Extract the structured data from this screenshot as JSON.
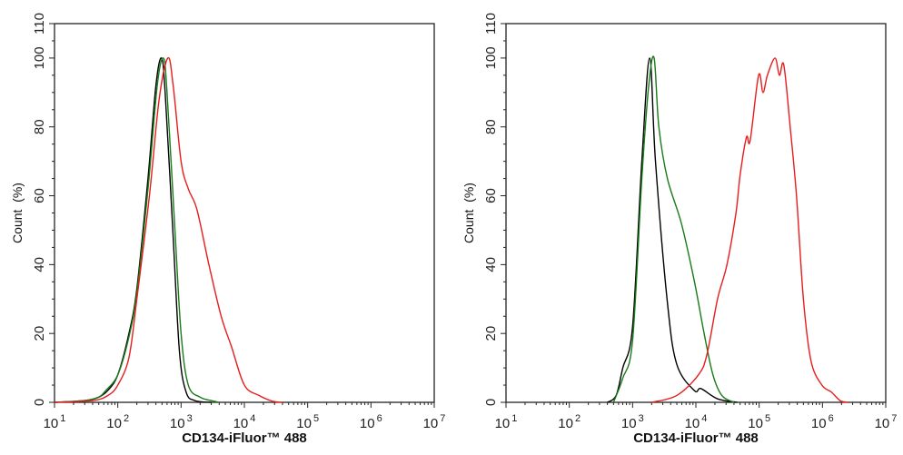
{
  "chart_data": [
    {
      "type": "line",
      "xlabel": "CD134-iFluor™ 488",
      "ylabel": "Count  (%)",
      "xscale": "log",
      "xlim": [
        10,
        10000000
      ],
      "ylim": [
        0,
        110
      ],
      "xticks": [
        {
          "base": "10",
          "exp": "1"
        },
        {
          "base": "10",
          "exp": "2"
        },
        {
          "base": "10",
          "exp": "3"
        },
        {
          "base": "10",
          "exp": "4"
        },
        {
          "base": "10",
          "exp": "5"
        },
        {
          "base": "10",
          "exp": "6"
        },
        {
          "base": "10",
          "exp": "7"
        }
      ],
      "yticks": [
        "0",
        "20",
        "40",
        "60",
        "80",
        "100",
        "110"
      ],
      "grid": false,
      "series": [
        {
          "color": "#000000",
          "points": [
            [
              10,
              0
            ],
            [
              30,
              0.5
            ],
            [
              50,
              1.5
            ],
            [
              70,
              3.5
            ],
            [
              100,
              8
            ],
            [
              150,
              20
            ],
            [
              200,
              33
            ],
            [
              300,
              65
            ],
            [
              400,
              92
            ],
            [
              490,
              100
            ],
            [
              560,
              90
            ],
            [
              740,
              50
            ],
            [
              940,
              15
            ],
            [
              1200,
              3
            ],
            [
              1660,
              0.5
            ],
            [
              3000,
              0
            ]
          ]
        },
        {
          "color": "#1a7a1a",
          "points": [
            [
              10,
              0
            ],
            [
              30,
              0.5
            ],
            [
              50,
              1.5
            ],
            [
              65,
              3.5
            ],
            [
              100,
              8
            ],
            [
              150,
              19
            ],
            [
              200,
              32
            ],
            [
              300,
              62
            ],
            [
              420,
              92
            ],
            [
              525,
              100
            ],
            [
              600,
              90
            ],
            [
              800,
              50
            ],
            [
              1000,
              20
            ],
            [
              1300,
              5
            ],
            [
              2000,
              1.5
            ],
            [
              3000,
              0.5
            ],
            [
              4000,
              0
            ]
          ]
        },
        {
          "color": "#e81c1c",
          "points": [
            [
              10,
              0
            ],
            [
              40,
              0.5
            ],
            [
              70,
              2
            ],
            [
              100,
              5
            ],
            [
              150,
              13
            ],
            [
              200,
              30
            ],
            [
              316,
              60
            ],
            [
              450,
              88
            ],
            [
              620,
              100
            ],
            [
              750,
              92
            ],
            [
              1000,
              70
            ],
            [
              1300,
              62
            ],
            [
              1780,
              56
            ],
            [
              2750,
              40
            ],
            [
              4300,
              25
            ],
            [
              6300,
              16
            ],
            [
              10000,
              5
            ],
            [
              17000,
              2
            ],
            [
              28000,
              0.3
            ],
            [
              40000,
              0
            ]
          ]
        }
      ]
    },
    {
      "type": "line",
      "xlabel": "CD134-iFluor™ 488",
      "ylabel": "Count  (%)",
      "xscale": "log",
      "xlim": [
        10,
        10000000
      ],
      "ylim": [
        0,
        110
      ],
      "xticks": [
        {
          "base": "10",
          "exp": "1"
        },
        {
          "base": "10",
          "exp": "2"
        },
        {
          "base": "10",
          "exp": "3"
        },
        {
          "base": "10",
          "exp": "4"
        },
        {
          "base": "10",
          "exp": "5"
        },
        {
          "base": "10",
          "exp": "6"
        },
        {
          "base": "10",
          "exp": "7"
        }
      ],
      "yticks": [
        "0",
        "20",
        "40",
        "60",
        "80",
        "100",
        "110"
      ],
      "grid": false,
      "series": [
        {
          "color": "#000000",
          "points": [
            [
              400,
              0
            ],
            [
              550,
              2
            ],
            [
              700,
              10
            ],
            [
              1000,
              22
            ],
            [
              1400,
              70
            ],
            [
              1860,
              100
            ],
            [
              2300,
              70
            ],
            [
              3550,
              29
            ],
            [
              5000,
              11
            ],
            [
              9500,
              3.4
            ],
            [
              12000,
              4
            ],
            [
              22000,
              1
            ],
            [
              45000,
              0
            ]
          ]
        },
        {
          "color": "#1a7a1a",
          "points": [
            [
              500,
              0
            ],
            [
              700,
              7
            ],
            [
              1000,
              18
            ],
            [
              1400,
              65
            ],
            [
              1800,
              92
            ],
            [
              2190,
              100
            ],
            [
              2600,
              80
            ],
            [
              3550,
              65
            ],
            [
              5900,
              52
            ],
            [
              9500,
              35
            ],
            [
              13500,
              20
            ],
            [
              18600,
              8
            ],
            [
              25700,
              2
            ],
            [
              40000,
              0
            ]
          ]
        },
        {
          "color": "#e81c1c",
          "points": [
            [
              2000,
              0
            ],
            [
              5000,
              2
            ],
            [
              11000,
              8
            ],
            [
              15000,
              14
            ],
            [
              22000,
              30
            ],
            [
              31000,
              40
            ],
            [
              43000,
              55
            ],
            [
              50000,
              66
            ],
            [
              63000,
              77
            ],
            [
              72000,
              76
            ],
            [
              98000,
              95
            ],
            [
              115000,
              90
            ],
            [
              135000,
              95
            ],
            [
              178000,
              100
            ],
            [
              209000,
              95
            ],
            [
              245000,
              98
            ],
            [
              309000,
              80
            ],
            [
              389000,
              60
            ],
            [
              500000,
              30
            ],
            [
              660000,
              12
            ],
            [
              980000,
              5
            ],
            [
              1380000,
              3
            ],
            [
              1900000,
              0.5
            ],
            [
              2500000,
              0
            ]
          ]
        }
      ]
    }
  ]
}
